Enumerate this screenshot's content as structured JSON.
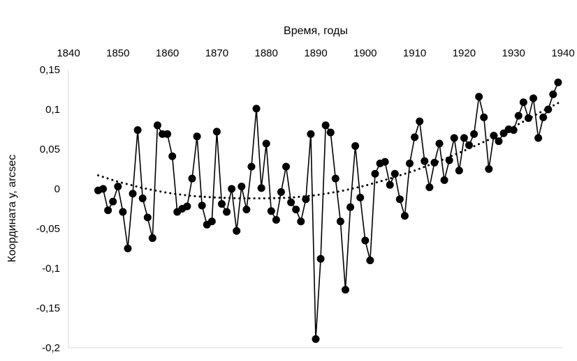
{
  "chart_data": {
    "type": "line",
    "xlabel": "Время,  годы",
    "ylabel": "Координата y, arcsec",
    "x_axis_position": "top",
    "xlim": [
      1840,
      1940
    ],
    "ylim": [
      -0.2,
      0.15
    ],
    "xticks": [
      1840,
      1850,
      1860,
      1870,
      1880,
      1890,
      1900,
      1910,
      1920,
      1930,
      1940
    ],
    "yticks": [
      0.15,
      0.1,
      0.05,
      0,
      -0.05,
      -0.1,
      -0.15,
      -0.2
    ],
    "ytick_labels": [
      "0,15",
      "0,1",
      "0,05",
      "0",
      "-0,05",
      "-0,1",
      "-0,15",
      "-0,2"
    ],
    "grid": false,
    "line_color": "#000000",
    "trendline_style": "dotted polynomial",
    "series": [
      {
        "x": [
          1846,
          1847,
          1848,
          1849,
          1850,
          1851,
          1852,
          1853,
          1854,
          1855,
          1856,
          1857,
          1858,
          1859,
          1860,
          1861,
          1862,
          1863,
          1864,
          1865,
          1866,
          1867,
          1868,
          1869,
          1870,
          1871,
          1872,
          1873,
          1874,
          1875,
          1876,
          1877,
          1878,
          1879,
          1880,
          1881,
          1882,
          1883,
          1884,
          1885,
          1886,
          1887,
          1888,
          1889,
          1890,
          1891,
          1892,
          1893,
          1894,
          1895,
          1896,
          1897,
          1898,
          1899,
          1900,
          1901,
          1902,
          1903,
          1904,
          1905,
          1906,
          1907,
          1908,
          1909,
          1910,
          1911,
          1912,
          1913,
          1914,
          1915,
          1916,
          1917,
          1918,
          1919,
          1920,
          1921,
          1922,
          1923,
          1924,
          1925,
          1926,
          1927,
          1928,
          1929,
          1930,
          1931,
          1932,
          1933,
          1934,
          1935,
          1936,
          1937,
          1938,
          1939
        ],
        "y": [
          -0.002,
          0,
          -0.027,
          -0.016,
          0.003,
          -0.029,
          -0.075,
          -0.006,
          0.074,
          -0.012,
          -0.036,
          -0.062,
          0.08,
          0.069,
          0.069,
          0.041,
          -0.029,
          -0.025,
          -0.022,
          0.013,
          0.066,
          -0.021,
          -0.045,
          -0.041,
          0.072,
          -0.019,
          -0.029,
          0,
          -0.053,
          0.003,
          -0.026,
          0.028,
          0.101,
          0.001,
          0.057,
          -0.028,
          -0.039,
          -0.004,
          0.028,
          -0.017,
          -0.026,
          -0.041,
          -0.013,
          0.069,
          -0.189,
          -0.088,
          0.08,
          0.071,
          0.013,
          -0.041,
          -0.127,
          -0.023,
          0.054,
          -0.011,
          -0.065,
          -0.09,
          0.019,
          0.032,
          0.034,
          0.005,
          0.019,
          -0.013,
          -0.034,
          0.032,
          0.065,
          0.085,
          0.035,
          0.002,
          0.033,
          0.057,
          0.011,
          0.036,
          0.064,
          0.023,
          0.064,
          0.055,
          0.069,
          0.116,
          0.09,
          0.025,
          0.067,
          0.06,
          0.07,
          0.075,
          0.074,
          0.092,
          0.109,
          0.089,
          0.114,
          0.064,
          0.09,
          0.1,
          0.119,
          0.134
        ]
      }
    ],
    "trendline": {
      "x": [
        1846,
        1850,
        1855,
        1860,
        1865,
        1870,
        1875,
        1880,
        1885,
        1890,
        1895,
        1900,
        1905,
        1910,
        1915,
        1920,
        1925,
        1930,
        1935,
        1939
      ],
      "y": [
        0.017,
        0.009,
        0.001,
        -0.005,
        -0.009,
        -0.011,
        -0.012,
        -0.012,
        -0.011,
        -0.008,
        -0.003,
        0.004,
        0.013,
        0.023,
        0.035,
        0.048,
        0.062,
        0.078,
        0.095,
        0.108
      ]
    }
  }
}
